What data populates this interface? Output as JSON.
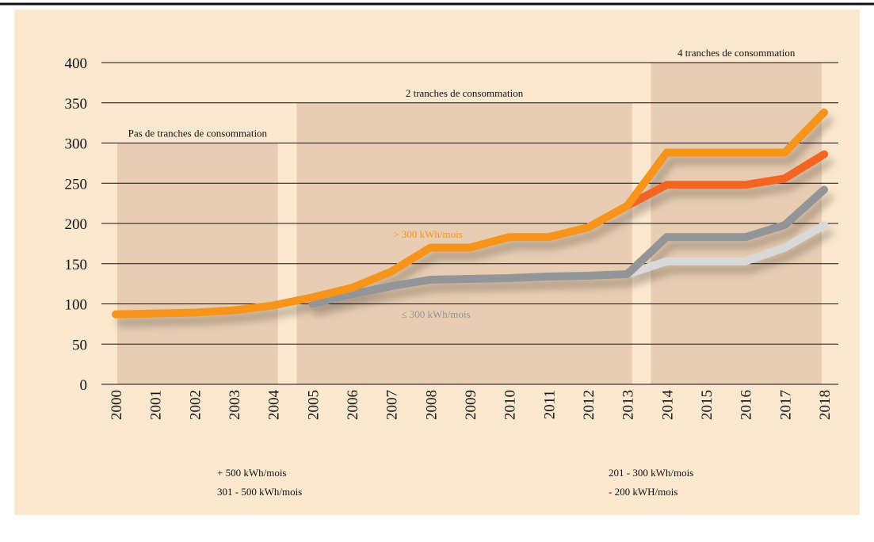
{
  "chart_data": {
    "type": "line",
    "categories": [
      "2000",
      "2001",
      "2002",
      "2003",
      "2004",
      "2005",
      "2006",
      "2007",
      "2008",
      "2009",
      "2010",
      "2011",
      "2012",
      "2013",
      "2014",
      "2015",
      "2016",
      "2017",
      "2018"
    ],
    "ylim": [
      0,
      400
    ],
    "yticks": [
      0,
      50,
      100,
      150,
      200,
      250,
      300,
      350,
      400
    ],
    "grid": true,
    "regions": [
      {
        "label": "Pas de tranches de consommation",
        "from": "2000",
        "to": "2004",
        "top": 300
      },
      {
        "label": "2 tranches de consommation",
        "from": "2005",
        "to": "2013",
        "top": 350
      },
      {
        "label": "4 tranches de consommation",
        "from": "2014",
        "to": "2018",
        "top": 400
      }
    ],
    "annotations": [
      {
        "text": "> 300 kWh/mois",
        "color": "#f7941d"
      },
      {
        "text": "≤ 300 kWh/mois",
        "color": "#939598"
      }
    ],
    "series": [
      {
        "name": "+ 500 kWh/mois",
        "color": "#f7941d",
        "values": [
          87,
          88,
          89,
          92,
          98,
          108,
          120,
          140,
          170,
          170,
          183,
          183,
          195,
          222,
          288,
          288,
          288,
          288,
          338
        ]
      },
      {
        "name": "301 - 500 kWh/mois",
        "color": "#f26522",
        "values": [
          null,
          null,
          null,
          null,
          null,
          null,
          null,
          null,
          null,
          null,
          null,
          null,
          null,
          222,
          248,
          248,
          248,
          256,
          286
        ]
      },
      {
        "name": "201 - 300 kWh/mois",
        "color": "#939598",
        "values": [
          null,
          null,
          null,
          null,
          null,
          100,
          112,
          122,
          130,
          131,
          132,
          134,
          135,
          137,
          183,
          183,
          183,
          198,
          242
        ]
      },
      {
        "name": "- 200 kWH/mois",
        "color": "#d9d9d9",
        "values": [
          null,
          null,
          null,
          null,
          null,
          null,
          null,
          null,
          null,
          null,
          null,
          null,
          null,
          137,
          153,
          153,
          153,
          170,
          198
        ]
      }
    ]
  }
}
